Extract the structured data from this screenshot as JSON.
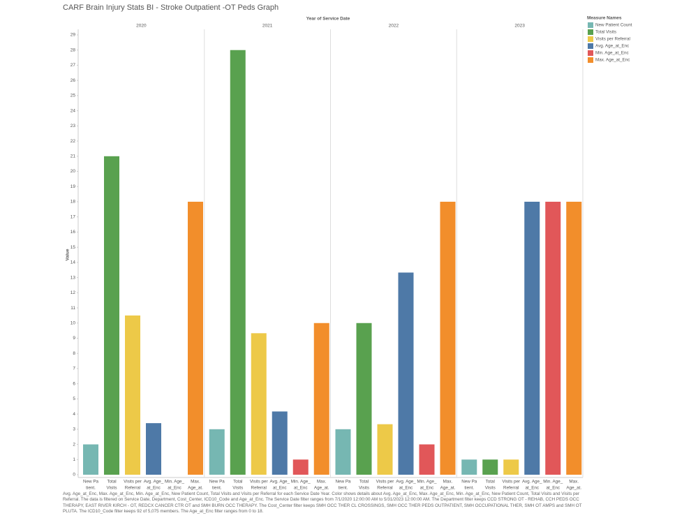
{
  "chart_data": {
    "type": "bar",
    "title": "CARF Brain Injury Stats BI - Stroke Outpatient -OT Peds Graph",
    "column_header": "Year of Service Date",
    "columns": [
      "2020",
      "2021",
      "2022",
      "2023"
    ],
    "y_label": "Value",
    "legend_title": "Measure Names",
    "ylim": [
      0,
      29
    ],
    "yticks": [
      0,
      1,
      2,
      3,
      4,
      5,
      6,
      7,
      8,
      9,
      10,
      11,
      12,
      13,
      14,
      15,
      16,
      17,
      18,
      19,
      20,
      21,
      22,
      23,
      24,
      25,
      26,
      27,
      28,
      29
    ],
    "series": [
      {
        "name": "New Patient Count",
        "short_label": [
          "New Pa",
          "tient."
        ],
        "color": "#76b7b2",
        "values": [
          2,
          3,
          3,
          1
        ]
      },
      {
        "name": "Total Visits",
        "short_label": [
          "Total",
          "Visits"
        ],
        "color": "#59a14f",
        "values": [
          21,
          28,
          10,
          1
        ]
      },
      {
        "name": "Visits per Referral",
        "short_label": [
          "Visits per",
          "Referral"
        ],
        "color": "#edc948",
        "values": [
          10.5,
          9.33,
          3.33,
          1
        ]
      },
      {
        "name": "Avg. Age_at_Enc",
        "short_label": [
          "Avg. Age_",
          "at_Enc"
        ],
        "color": "#4e79a7",
        "values": [
          3.4,
          4.17,
          13.33,
          18
        ]
      },
      {
        "name": "Min. Age_at_Enc",
        "short_label": [
          "Min. Age_",
          "at_Enc"
        ],
        "color": "#e15759",
        "values": [
          0,
          1,
          2,
          18
        ]
      },
      {
        "name": "Max. Age_at_Enc",
        "short_label": [
          "Max.",
          "Age_at."
        ],
        "color": "#f28e2b",
        "values": [
          18,
          10,
          18,
          18
        ]
      }
    ],
    "footnote": "Avg. Age_at_Enc, Max. Age_at_Enc, Min. Age_at_Enc, New Patient Count, Total Visits and Visits per Referral for each Service Date Year.  Color shows details about Avg. Age_at_Enc, Max. Age_at_Enc, Min. Age_at_Enc, New Patient Count, Total Visits and Visits per Referral. The data is filtered on Service Date, Department, Cost_Center, ICD10_Code and Age_at_Enc. The Service Date filter ranges from 7/1/2020 12:00:00 AM to 5/31/2023 12:00:00 AM. The Department filter keeps CCD STRONG OT - REHAB, CCH PEDS OCC THERAPY, EAST RIVER KIRCH - OT, REDCX CANCER CTR OT and SMH BURN OCC THERAPY. The Cost_Center filter keeps SMH OCC THER CL CROSSINGS, SMH OCC THER PEDS OUTPATIENT, SMH OCCUPATIONAL THER, SMH OT AMPS and SMH OT PLUTA. The ICD10_Code filter keeps 92 of 5,075 members. The Age_at_Enc filter ranges from 0 to 18."
  }
}
